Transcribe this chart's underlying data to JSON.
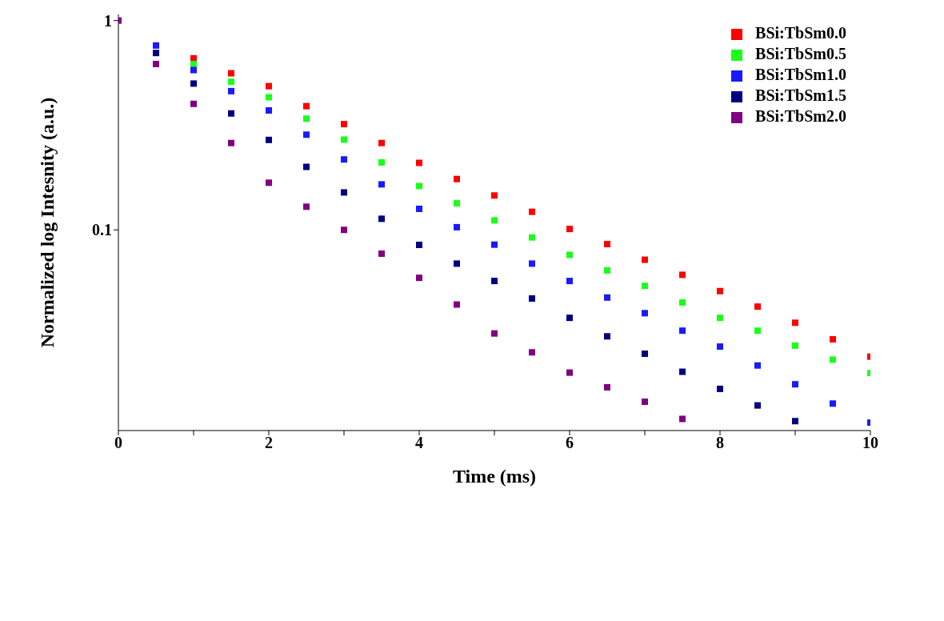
{
  "chart_data": {
    "type": "scatter",
    "xlabel": "Time (ms)",
    "ylabel": "Normalized log Intesnity (a.u.)",
    "log": "y",
    "marker": "square",
    "legend": "top right",
    "grid": false,
    "xlim": [
      0,
      10
    ],
    "xticks": [
      0,
      {
        "value": 1,
        "label": null
      },
      2,
      {
        "value": 3,
        "label": null
      },
      4,
      {
        "value": 5,
        "label": null
      },
      6,
      {
        "value": 7,
        "label": null
      },
      8,
      {
        "value": 9,
        "label": null
      },
      10
    ],
    "ylim": [
      0.011,
      1.07
    ],
    "yticks": [
      0.1,
      1
    ],
    "x": [
      0,
      0.5,
      1,
      1.5,
      2,
      2.5,
      3,
      3.5,
      4,
      4.5,
      5,
      5.5,
      6,
      6.5,
      7,
      7.5,
      8,
      8.5,
      9,
      9.5,
      10
    ],
    "series": [
      {
        "name": "BSi:TbSm0.0",
        "color": "#ff0000",
        "values": [
          null,
          null,
          0.66,
          0.56,
          0.486,
          0.39,
          0.32,
          0.26,
          0.209,
          0.175,
          0.146,
          0.122,
          0.101,
          0.0855,
          0.072,
          0.061,
          0.051,
          0.043,
          0.036,
          0.03,
          0.0248
        ]
      },
      {
        "name": "BSi:TbSm0.5",
        "color": "#1aff1a",
        "values": [
          null,
          null,
          0.62,
          0.51,
          0.43,
          0.34,
          0.27,
          0.21,
          0.162,
          0.134,
          0.111,
          0.092,
          0.076,
          0.064,
          0.054,
          0.045,
          0.038,
          0.033,
          0.028,
          0.024,
          0.0207
        ]
      },
      {
        "name": "BSi:TbSm1.0",
        "color": "#1a1aff",
        "values": [
          null,
          0.76,
          0.58,
          0.46,
          0.372,
          0.285,
          0.217,
          0.165,
          0.126,
          0.103,
          0.085,
          0.069,
          0.057,
          0.0475,
          0.04,
          0.033,
          0.0277,
          0.0225,
          0.0183,
          0.0148,
          0.012
        ]
      },
      {
        "name": "BSi:TbSm1.5",
        "color": "#000080",
        "values": [
          null,
          0.7,
          0.5,
          0.36,
          0.269,
          0.2,
          0.151,
          0.113,
          0.0848,
          0.069,
          0.057,
          0.047,
          0.038,
          0.031,
          0.0256,
          0.021,
          0.0174,
          0.0145,
          0.0122,
          null,
          null
        ]
      },
      {
        "name": "BSi:TbSm2.0",
        "color": "#800080",
        "values": [
          1,
          0.62,
          0.4,
          0.26,
          0.168,
          0.129,
          0.1,
          0.077,
          0.059,
          0.044,
          0.032,
          0.026,
          0.0208,
          0.0177,
          0.0151,
          0.0125,
          null,
          null,
          null,
          null,
          null
        ]
      }
    ]
  }
}
